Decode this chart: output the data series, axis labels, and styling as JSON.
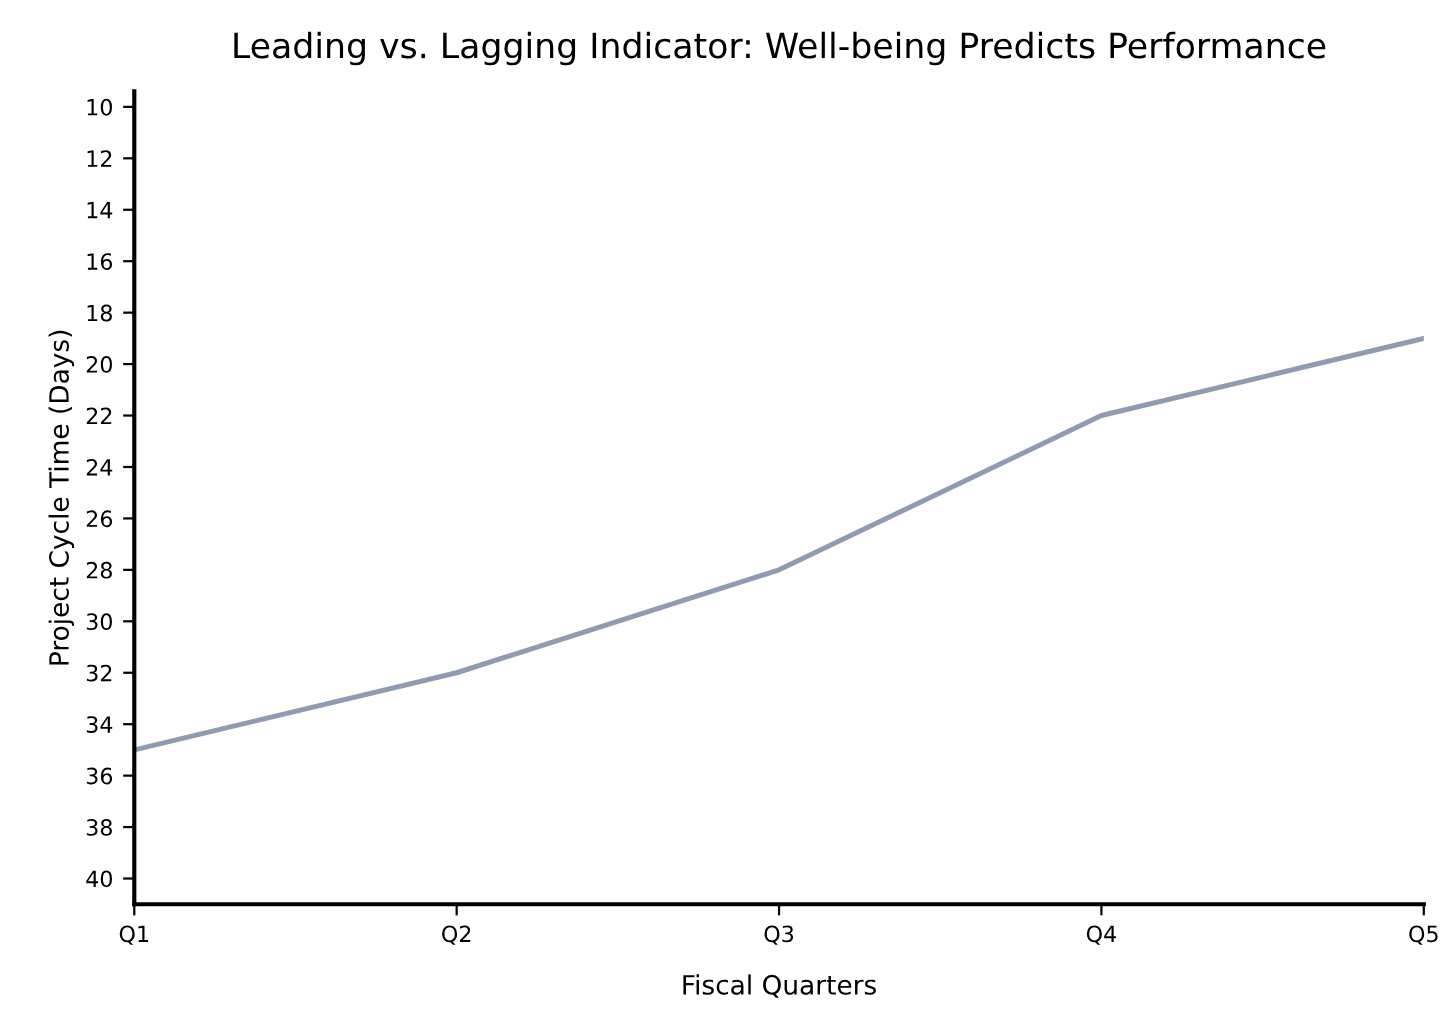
{
  "chart_data": {
    "type": "line",
    "title": "Leading vs. Lagging Indicator: Well-being Predicts Performance",
    "xlabel": "Fiscal Quarters",
    "ylabel": "Project Cycle Time (Days)",
    "categories": [
      "Q1",
      "Q2",
      "Q3",
      "Q4",
      "Q5"
    ],
    "series": [
      {
        "color": "#8f9bb3",
        "values": [
          35,
          32,
          28,
          22,
          19
        ]
      }
    ],
    "ylim": [
      41,
      9.4
    ],
    "yticks": [
      10,
      12,
      14,
      16,
      18,
      20,
      22,
      24,
      26,
      28,
      30,
      32,
      34,
      36,
      38,
      40
    ],
    "grid": false,
    "legend": false,
    "marker": "none",
    "line_style": "solid"
  }
}
